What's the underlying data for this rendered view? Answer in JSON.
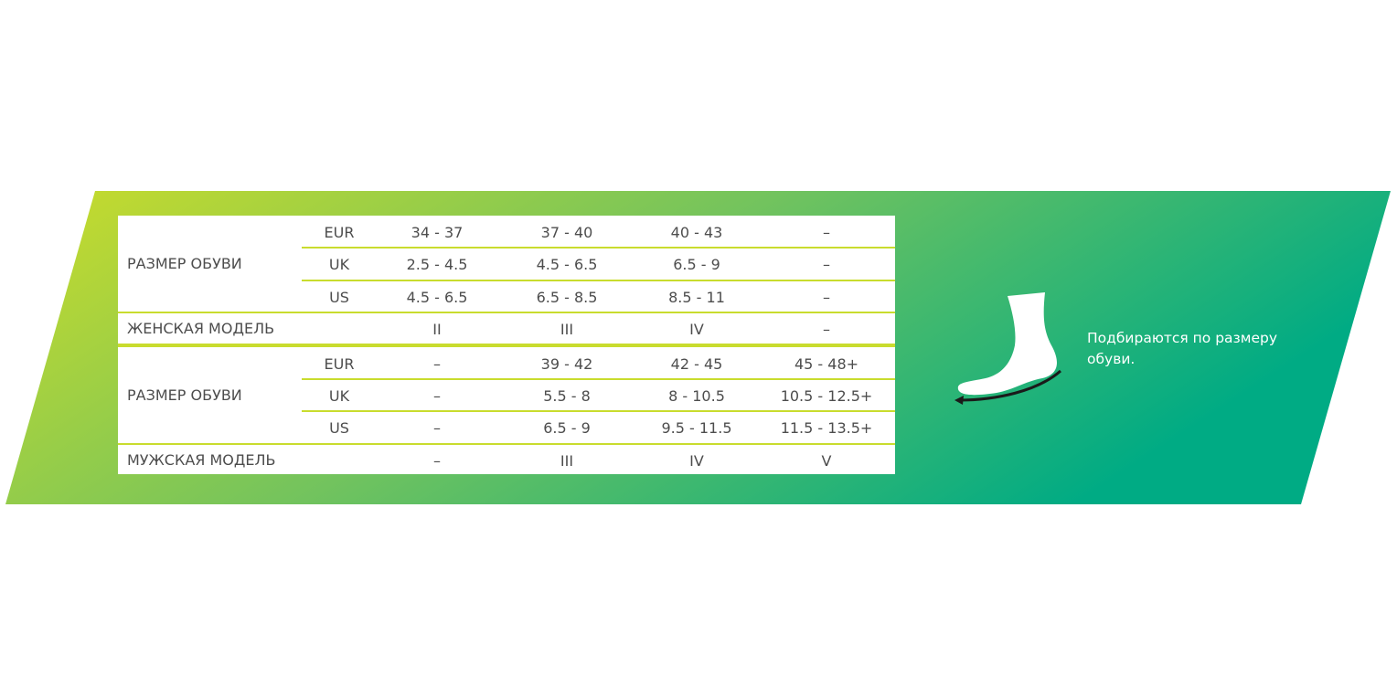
{
  "colors": {
    "gradient_start": "#cbdc2a",
    "gradient_end": "#00ab84",
    "divider": "#c9dc2e",
    "text": "#4d4d4d"
  },
  "women": {
    "group_label": "РАЗМЕР ОБУВИ",
    "rows": [
      {
        "unit": "EUR",
        "values": [
          "34 - 37",
          "37 - 40",
          "40 - 43",
          "–"
        ]
      },
      {
        "unit": "UK",
        "values": [
          "2.5 - 4.5",
          "4.5 - 6.5",
          "6.5 - 9",
          "–"
        ]
      },
      {
        "unit": "US",
        "values": [
          "4.5 - 6.5",
          "6.5 - 8.5",
          "8.5 - 11",
          "–"
        ]
      }
    ],
    "model_label": "ЖЕНСКАЯ МОДЕЛЬ",
    "model_values": [
      "II",
      "III",
      "IV",
      "–"
    ]
  },
  "men": {
    "group_label": "РАЗМЕР ОБУВИ",
    "rows": [
      {
        "unit": "EUR",
        "values": [
          "–",
          "39 - 42",
          "42 - 45",
          "45 - 48+"
        ]
      },
      {
        "unit": "UK",
        "values": [
          "–",
          "5.5 - 8",
          "8 - 10.5",
          "10.5 - 12.5+"
        ]
      },
      {
        "unit": "US",
        "values": [
          "–",
          "6.5 - 9",
          "9.5 - 11.5",
          "11.5 - 13.5+"
        ]
      }
    ],
    "model_label": "МУЖСКАЯ МОДЕЛЬ",
    "model_values": [
      "–",
      "III",
      "IV",
      "V"
    ]
  },
  "note": "Подбираются по размеру обуви.",
  "icons": {
    "foot": "foot-measure-icon"
  }
}
